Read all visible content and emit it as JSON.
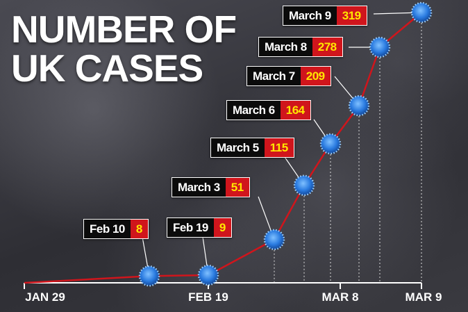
{
  "chart_data": {
    "type": "line",
    "title": "NUMBER OF UK CASES",
    "categories": [
      "Feb 10",
      "Feb 19",
      "March 3",
      "March 5",
      "March 6",
      "March 7",
      "March 8",
      "March 9"
    ],
    "values": [
      8,
      9,
      51,
      115,
      164,
      209,
      278,
      319
    ],
    "x_axis_labels": [
      "JAN 29",
      "FEB 19",
      "MAR 8",
      "MAR 9"
    ],
    "color": "#d0151c"
  }
}
